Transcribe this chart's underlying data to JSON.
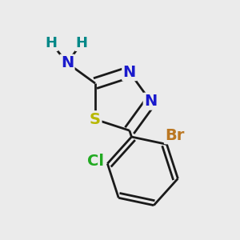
{
  "bg_color": "#ebebeb",
  "bond_color": "#1a1a1a",
  "bond_width": 2.0,
  "atom_labels": {
    "S": {
      "color": "#b8b800",
      "fontsize": 14,
      "fontweight": "bold"
    },
    "N": {
      "color": "#1a1acc",
      "fontsize": 14,
      "fontweight": "bold"
    },
    "H": {
      "color": "#008888",
      "fontsize": 13,
      "fontweight": "bold"
    },
    "Cl": {
      "color": "#22aa22",
      "fontsize": 14,
      "fontweight": "bold"
    },
    "Br": {
      "color": "#bb7722",
      "fontsize": 14,
      "fontweight": "bold"
    }
  }
}
